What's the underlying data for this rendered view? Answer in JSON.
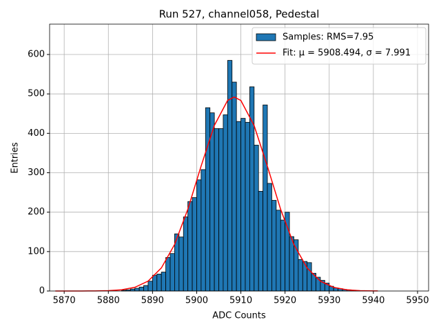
{
  "chart_data": {
    "type": "histogram",
    "title": "Run 527, channel058, Pedestal",
    "x_label": "ADC Counts",
    "y_label": "Entries",
    "bins": [
      5883,
      5884,
      5885,
      5886,
      5887,
      5888,
      5889,
      5890,
      5891,
      5892,
      5893,
      5894,
      5895,
      5896,
      5897,
      5898,
      5899,
      5900,
      5901,
      5902,
      5903,
      5904,
      5905,
      5906,
      5907,
      5908,
      5909,
      5910,
      5911,
      5912,
      5913,
      5914,
      5915,
      5916,
      5917,
      5918,
      5919,
      5920,
      5921,
      5922,
      5923,
      5924,
      5925,
      5926,
      5927,
      5928,
      5929,
      5930,
      5931,
      5932,
      5933,
      5934,
      5935,
      5936,
      5937
    ],
    "values": [
      2,
      3,
      5,
      7,
      10,
      14,
      25,
      40,
      43,
      48,
      85,
      95,
      145,
      137,
      188,
      227,
      237,
      282,
      308,
      465,
      452,
      412,
      412,
      447,
      585,
      530,
      430,
      438,
      428,
      518,
      370,
      253,
      472,
      273,
      230,
      205,
      180,
      200,
      138,
      130,
      80,
      75,
      72,
      45,
      35,
      27,
      20,
      12,
      8,
      6,
      4,
      3,
      2,
      1
    ],
    "name": "Samples: RMS=7.95",
    "color": "#1f77b4",
    "fit": {
      "name": "Fit: μ = 5908.494, σ = 7.991",
      "color": "#ff0000",
      "x": [
        5868,
        5871,
        5874,
        5877,
        5880,
        5883,
        5886,
        5889,
        5892,
        5895,
        5898,
        5901,
        5904,
        5907,
        5908.494,
        5910,
        5913,
        5916,
        5919,
        5922,
        5925,
        5928,
        5931,
        5934,
        5937,
        5940,
        5941
      ],
      "values": [
        0,
        0.01,
        0.04,
        0.21,
        0.85,
        3.0,
        9.4,
        25.1,
        58.5,
        118.2,
        207.7,
        317.0,
        420.1,
        483.5,
        492,
        483.3,
        419.7,
        316.5,
        207.3,
        117.9,
        58.3,
        25.0,
        9.3,
        3.0,
        0.85,
        0.21,
        0.13
      ]
    },
    "xlim": [
      5866.7,
      5952.5
    ],
    "ylim": [
      0,
      677
    ],
    "xticks": [
      5870,
      5880,
      5890,
      5900,
      5910,
      5920,
      5930,
      5940,
      5950
    ],
    "yticks": [
      0,
      100,
      200,
      300,
      400,
      500,
      600
    ],
    "grid": true,
    "legend": "upper right"
  }
}
